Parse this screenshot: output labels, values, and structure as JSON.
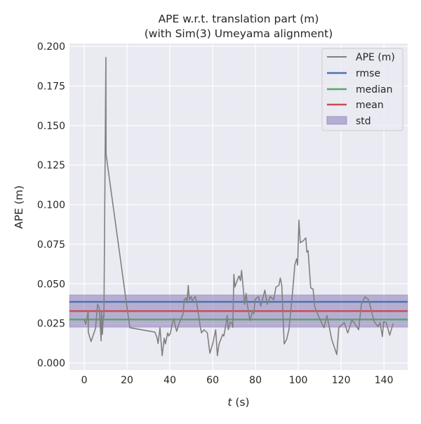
{
  "chart_data": {
    "type": "line",
    "title": [
      "APE w.r.t. translation part (m)",
      "(with Sim(3) Umeyama alignment)"
    ],
    "xlabel": {
      "italic": "t",
      "rest": " (s)"
    },
    "ylabel": "APE (m)",
    "xlim": [
      -6.9,
      151.1
    ],
    "ylim": [
      -0.0044,
      0.2018
    ],
    "xticks": [
      0,
      20,
      40,
      60,
      80,
      100,
      120,
      140
    ],
    "xtick_labels": [
      "0",
      "20",
      "40",
      "60",
      "80",
      "100",
      "120",
      "140"
    ],
    "yticks": [
      0,
      0.025,
      0.05,
      0.075,
      0.1,
      0.125,
      0.15,
      0.175,
      0.2
    ],
    "ytick_labels": [
      "0.000",
      "0.025",
      "0.050",
      "0.075",
      "0.100",
      "0.125",
      "0.150",
      "0.175",
      "0.200"
    ],
    "grid": true,
    "legend_position": "top-right",
    "legend": [
      "APE (m)",
      "rmse",
      "median",
      "mean",
      "std"
    ],
    "colors": {
      "ape": "#808080",
      "rmse": "#4c72b0",
      "median": "#55a868",
      "mean": "#c44e52",
      "std": "#8172b2",
      "background": "#eaeaf2"
    },
    "stats": {
      "rmse": 0.0386,
      "median": 0.0275,
      "mean": 0.0328,
      "std_low": 0.0226,
      "std_high": 0.043
    },
    "series": [
      {
        "name": "APE (m)",
        "x": [
          0,
          0.75,
          1.9,
          1.9,
          3.2,
          5.3,
          6.2,
          7,
          7.9,
          8,
          8.5,
          8.9,
          9.2,
          10.1,
          10.2,
          21.3,
          33,
          34,
          34.5,
          35.4,
          36.4,
          37.4,
          37.9,
          39,
          39.5,
          40.3,
          41.1,
          41.9,
          42.4,
          43.2,
          44.3,
          46.2,
          46.7,
          47.5,
          48,
          48.6,
          49.1,
          49.9,
          50.5,
          51.3,
          51.8,
          52.3,
          54.3,
          54.8,
          55.9,
          57.5,
          58.7,
          60,
          61.4,
          62.2,
          63,
          64.7,
          65.2,
          66.3,
          66.8,
          67.3,
          68.2,
          69,
          69.4,
          69.9,
          70.4,
          70.9,
          72.3,
          73,
          73.5,
          74.3,
          74.9,
          75.6,
          76.2,
          77.4,
          78.7,
          79.2,
          79.8,
          81.4,
          82.5,
          84.4,
          85.5,
          86.9,
          88.5,
          89.6,
          90.9,
          91.6,
          92.3,
          93.4,
          94.6,
          95.6,
          97.3,
          98.4,
          99.2,
          99.7,
          100.3,
          100.9,
          102.2,
          103.5,
          104,
          104.6,
          105.8,
          106.9,
          107.7,
          109.3,
          112,
          113.4,
          115.6,
          118,
          118.9,
          120.2,
          121.5,
          123.1,
          125,
          126.1,
          128.2,
          129.5,
          131.1,
          132.8,
          135.5,
          137.2,
          138.2,
          139.3,
          139.9,
          141.1,
          142.7,
          144.3
        ],
        "y": [
          0.027,
          0.0245,
          0.033,
          0.0195,
          0.0135,
          0.022,
          0.037,
          0.035,
          0.014,
          0.033,
          0.018,
          0.03,
          0.029,
          0.193,
          0.1317,
          0.0223,
          0.0195,
          0.016,
          0.0123,
          0.0223,
          0.0046,
          0.0157,
          0.012,
          0.019,
          0.017,
          0.019,
          0.025,
          0.028,
          0.024,
          0.02,
          0.025,
          0.031,
          0.04,
          0.041,
          0.038,
          0.049,
          0.04,
          0.042,
          0.039,
          0.041,
          0.042,
          0.04,
          0.0223,
          0.019,
          0.021,
          0.019,
          0.0062,
          0.012,
          0.021,
          0.0046,
          0.012,
          0.018,
          0.017,
          0.025,
          0.03,
          0.021,
          0.026,
          0.025,
          0.0225,
          0.056,
          0.048,
          0.05,
          0.055,
          0.052,
          0.0585,
          0.047,
          0.037,
          0.044,
          0.037,
          0.0268,
          0.033,
          0.031,
          0.04,
          0.042,
          0.036,
          0.046,
          0.037,
          0.042,
          0.04,
          0.048,
          0.049,
          0.0537,
          0.049,
          0.012,
          0.015,
          0.021,
          0.0445,
          0.062,
          0.0658,
          0.0618,
          0.0903,
          0.076,
          0.077,
          0.079,
          0.07,
          0.071,
          0.0475,
          0.0466,
          0.0356,
          0.03,
          0.0223,
          0.03,
          0.015,
          0.0053,
          0.0223,
          0.024,
          0.0255,
          0.019,
          0.027,
          0.0255,
          0.021,
          0.037,
          0.0418,
          0.04,
          0.026,
          0.023,
          0.0255,
          0.0167,
          0.026,
          0.0255,
          0.0176,
          0.025
        ]
      }
    ]
  }
}
